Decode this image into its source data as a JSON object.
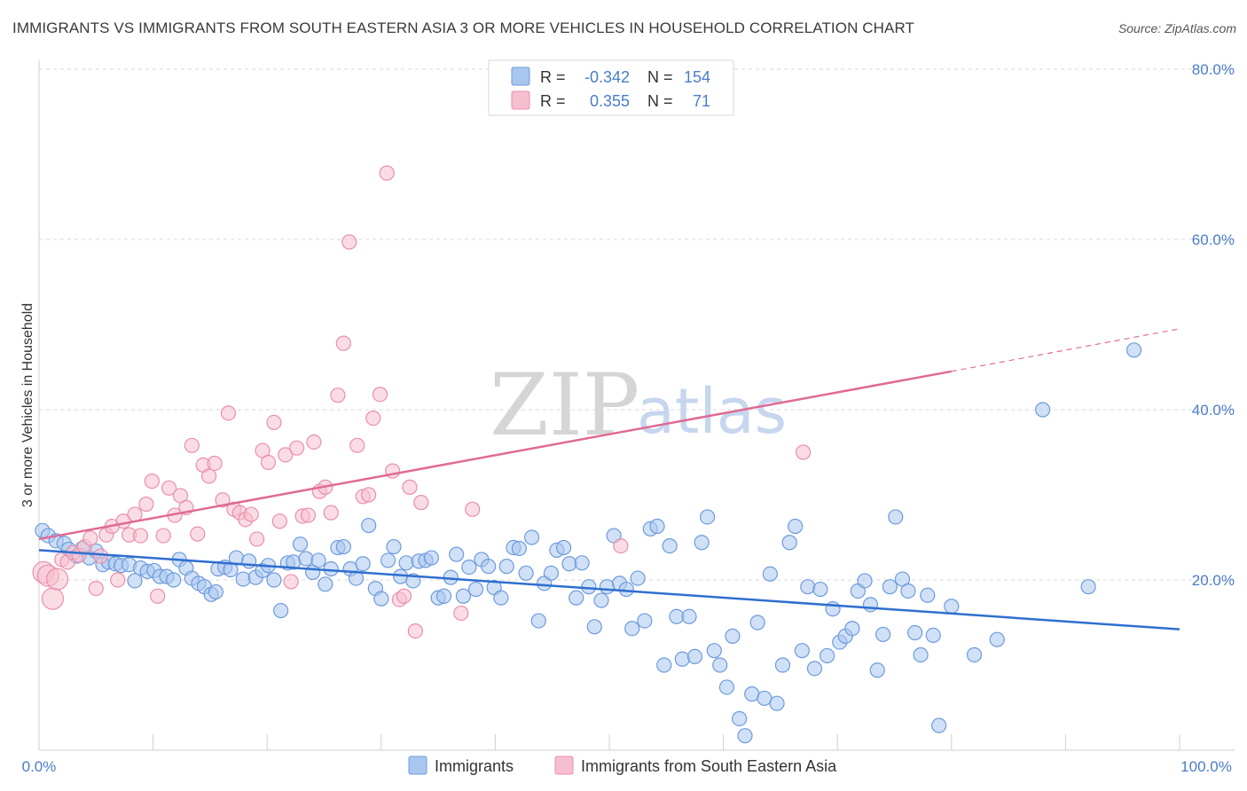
{
  "header": {
    "title": "IMMIGRANTS VS IMMIGRANTS FROM SOUTH EASTERN ASIA 3 OR MORE VEHICLES IN HOUSEHOLD CORRELATION CHART",
    "source": "Source: ZipAtlas.com"
  },
  "watermark": {
    "zip": "ZIP",
    "atlas": "atlas"
  },
  "colors": {
    "blue_fill": "#a9c6ef",
    "blue_stroke": "#6d9bdc",
    "blue_line": "#2e6fcf",
    "pink_fill": "#f6bfd0",
    "pink_stroke": "#e98fab",
    "pink_line": "#e06a94",
    "tick": "#4a7cc9",
    "grid": "#d9d9d9"
  },
  "legend": {
    "rows": [
      {
        "r_label": "R =",
        "r_value": "-0.342",
        "n_label": "N =",
        "n_value": "154"
      },
      {
        "r_label": "R =",
        "r_value": "0.355",
        "n_label": "N =",
        "n_value": "71"
      }
    ]
  },
  "chart_data": {
    "type": "scatter",
    "title": "IMMIGRANTS VS IMMIGRANTS FROM SOUTH EASTERN ASIA 3 OR MORE VEHICLES IN HOUSEHOLD CORRELATION CHART",
    "xlabel": "",
    "ylabel": "3 or more Vehicles in Household",
    "xlim": [
      0,
      100
    ],
    "ylim": [
      0,
      80
    ],
    "x_tick_labels": [
      "0.0%",
      "100.0%"
    ],
    "y_tick_labels": [
      "20.0%",
      "40.0%",
      "60.0%",
      "80.0%"
    ],
    "y_ticks": [
      20,
      40,
      60,
      80
    ],
    "grid": true,
    "legend_position": "top-center",
    "series": [
      {
        "name": "Immigrants",
        "color": "#6d9bdc",
        "r": -0.342,
        "n": 154,
        "trend": {
          "x": [
            0,
            100
          ],
          "y": [
            23.5,
            14.2
          ]
        },
        "points": [
          [
            0.3,
            25.8
          ],
          [
            0.8,
            25.2
          ],
          [
            1.5,
            24.6
          ],
          [
            2.2,
            24.3
          ],
          [
            2.6,
            23.6
          ],
          [
            3.3,
            22.8
          ],
          [
            3.8,
            23.7
          ],
          [
            4.4,
            22.6
          ],
          [
            5.0,
            23.4
          ],
          [
            5.6,
            21.8
          ],
          [
            6.1,
            22.1
          ],
          [
            6.7,
            21.9
          ],
          [
            7.2,
            21.7
          ],
          [
            7.9,
            21.8
          ],
          [
            8.4,
            19.9
          ],
          [
            8.9,
            21.4
          ],
          [
            9.5,
            21.0
          ],
          [
            10.1,
            21.1
          ],
          [
            10.6,
            20.4
          ],
          [
            11.2,
            20.4
          ],
          [
            11.8,
            20.0
          ],
          [
            12.3,
            22.4
          ],
          [
            12.9,
            21.4
          ],
          [
            13.4,
            20.2
          ],
          [
            14.0,
            19.6
          ],
          [
            14.5,
            19.2
          ],
          [
            15.1,
            18.3
          ],
          [
            15.7,
            21.3
          ],
          [
            16.3,
            21.5
          ],
          [
            16.8,
            21.2
          ],
          [
            17.3,
            22.6
          ],
          [
            17.9,
            20.1
          ],
          [
            18.4,
            22.2
          ],
          [
            19.0,
            20.3
          ],
          [
            19.6,
            21.1
          ],
          [
            20.1,
            21.7
          ],
          [
            20.6,
            20.0
          ],
          [
            21.2,
            16.4
          ],
          [
            21.8,
            22.0
          ],
          [
            22.3,
            22.1
          ],
          [
            22.9,
            24.2
          ],
          [
            23.4,
            22.5
          ],
          [
            24.0,
            20.9
          ],
          [
            24.5,
            22.3
          ],
          [
            25.1,
            19.5
          ],
          [
            25.6,
            21.3
          ],
          [
            26.2,
            23.8
          ],
          [
            26.7,
            23.9
          ],
          [
            27.3,
            21.3
          ],
          [
            27.8,
            20.2
          ],
          [
            28.4,
            21.9
          ],
          [
            28.9,
            26.4
          ],
          [
            29.5,
            19.0
          ],
          [
            30.0,
            17.8
          ],
          [
            30.6,
            22.3
          ],
          [
            31.1,
            23.9
          ],
          [
            31.7,
            20.4
          ],
          [
            32.2,
            22.0
          ],
          [
            32.8,
            19.9
          ],
          [
            33.3,
            22.2
          ],
          [
            33.9,
            22.3
          ],
          [
            34.4,
            22.6
          ],
          [
            35.0,
            17.9
          ],
          [
            35.5,
            18.1
          ],
          [
            36.1,
            20.3
          ],
          [
            36.6,
            23.0
          ],
          [
            37.2,
            18.1
          ],
          [
            37.7,
            21.5
          ],
          [
            38.3,
            18.9
          ],
          [
            38.8,
            22.4
          ],
          [
            39.4,
            21.6
          ],
          [
            39.9,
            19.1
          ],
          [
            40.5,
            17.9
          ],
          [
            41.0,
            21.6
          ],
          [
            41.6,
            23.8
          ],
          [
            42.1,
            23.7
          ],
          [
            42.7,
            20.8
          ],
          [
            43.2,
            25.0
          ],
          [
            43.8,
            15.2
          ],
          [
            44.3,
            19.6
          ],
          [
            44.9,
            20.8
          ],
          [
            45.4,
            23.5
          ],
          [
            46.0,
            23.8
          ],
          [
            46.5,
            21.9
          ],
          [
            47.1,
            17.9
          ],
          [
            47.6,
            22.0
          ],
          [
            48.2,
            19.2
          ],
          [
            48.7,
            14.5
          ],
          [
            49.3,
            17.6
          ],
          [
            49.8,
            19.2
          ],
          [
            50.4,
            25.2
          ],
          [
            50.9,
            19.6
          ],
          [
            51.5,
            18.9
          ],
          [
            52.0,
            14.3
          ],
          [
            52.5,
            20.2
          ],
          [
            53.1,
            15.2
          ],
          [
            53.6,
            26.0
          ],
          [
            54.2,
            26.3
          ],
          [
            54.8,
            10.0
          ],
          [
            55.3,
            24.0
          ],
          [
            55.9,
            15.7
          ],
          [
            56.4,
            10.7
          ],
          [
            57.0,
            15.7
          ],
          [
            57.5,
            11.0
          ],
          [
            58.1,
            24.4
          ],
          [
            58.6,
            27.4
          ],
          [
            59.2,
            11.7
          ],
          [
            59.7,
            10.0
          ],
          [
            60.3,
            7.4
          ],
          [
            60.8,
            13.4
          ],
          [
            61.4,
            3.7
          ],
          [
            61.9,
            1.7
          ],
          [
            62.5,
            6.6
          ],
          [
            63.0,
            15.0
          ],
          [
            63.6,
            6.1
          ],
          [
            64.1,
            20.7
          ],
          [
            64.7,
            5.5
          ],
          [
            65.2,
            10.0
          ],
          [
            65.8,
            24.4
          ],
          [
            66.3,
            26.3
          ],
          [
            66.9,
            11.7
          ],
          [
            67.4,
            19.2
          ],
          [
            68.0,
            9.6
          ],
          [
            68.5,
            18.9
          ],
          [
            69.1,
            11.1
          ],
          [
            69.6,
            16.6
          ],
          [
            70.2,
            12.7
          ],
          [
            70.7,
            13.4
          ],
          [
            71.3,
            14.3
          ],
          [
            71.8,
            18.7
          ],
          [
            72.4,
            19.9
          ],
          [
            72.9,
            17.1
          ],
          [
            73.5,
            9.4
          ],
          [
            74.0,
            13.6
          ],
          [
            74.6,
            19.2
          ],
          [
            75.1,
            27.4
          ],
          [
            75.7,
            20.1
          ],
          [
            76.2,
            18.7
          ],
          [
            76.8,
            13.8
          ],
          [
            77.3,
            11.2
          ],
          [
            77.9,
            18.2
          ],
          [
            78.4,
            13.5
          ],
          [
            78.9,
            2.9
          ],
          [
            80.0,
            16.9
          ],
          [
            82.0,
            11.2
          ],
          [
            84.0,
            13.0
          ],
          [
            88.0,
            40.0
          ],
          [
            92.0,
            19.2
          ],
          [
            96.0,
            47.0
          ],
          [
            15.5,
            18.6
          ]
        ]
      },
      {
        "name": "Immigrants from South Eastern Asia",
        "color": "#e98fab",
        "r": 0.355,
        "n": 71,
        "trend": {
          "x": [
            0,
            80
          ],
          "y": [
            24.8,
            44.5
          ]
        },
        "trend_dashed": {
          "x": [
            80,
            100
          ],
          "y": [
            44.5,
            49.5
          ]
        },
        "points": [
          [
            0.4,
            20.9
          ],
          [
            0.8,
            20.5
          ],
          [
            1.2,
            17.8
          ],
          [
            1.6,
            20.1
          ],
          [
            2.0,
            22.4
          ],
          [
            2.5,
            22.1
          ],
          [
            3.0,
            23.2
          ],
          [
            3.5,
            22.9
          ],
          [
            4.0,
            23.9
          ],
          [
            4.5,
            24.9
          ],
          [
            5.0,
            19.0
          ],
          [
            5.4,
            22.8
          ],
          [
            5.9,
            25.3
          ],
          [
            6.4,
            26.3
          ],
          [
            6.9,
            20.0
          ],
          [
            7.4,
            26.9
          ],
          [
            7.9,
            25.3
          ],
          [
            8.4,
            27.7
          ],
          [
            8.9,
            25.2
          ],
          [
            9.4,
            28.9
          ],
          [
            9.9,
            31.6
          ],
          [
            10.4,
            18.1
          ],
          [
            10.9,
            25.2
          ],
          [
            11.4,
            30.8
          ],
          [
            11.9,
            27.6
          ],
          [
            12.4,
            29.9
          ],
          [
            12.9,
            28.5
          ],
          [
            13.4,
            35.8
          ],
          [
            13.9,
            25.4
          ],
          [
            14.4,
            33.5
          ],
          [
            14.9,
            32.2
          ],
          [
            15.4,
            33.7
          ],
          [
            16.1,
            29.4
          ],
          [
            16.6,
            39.6
          ],
          [
            17.1,
            28.3
          ],
          [
            17.6,
            27.9
          ],
          [
            18.1,
            27.1
          ],
          [
            18.6,
            27.7
          ],
          [
            19.1,
            24.8
          ],
          [
            19.6,
            35.2
          ],
          [
            20.1,
            33.8
          ],
          [
            20.6,
            38.5
          ],
          [
            21.1,
            26.9
          ],
          [
            21.6,
            34.7
          ],
          [
            22.1,
            19.8
          ],
          [
            22.6,
            35.5
          ],
          [
            23.1,
            27.5
          ],
          [
            23.6,
            27.6
          ],
          [
            24.1,
            36.2
          ],
          [
            24.6,
            30.4
          ],
          [
            25.1,
            30.9
          ],
          [
            25.6,
            27.9
          ],
          [
            26.2,
            41.7
          ],
          [
            26.7,
            47.8
          ],
          [
            27.2,
            59.7
          ],
          [
            27.9,
            35.8
          ],
          [
            28.4,
            29.8
          ],
          [
            28.9,
            30.0
          ],
          [
            29.3,
            39.0
          ],
          [
            29.9,
            41.8
          ],
          [
            30.5,
            67.8
          ],
          [
            31.0,
            32.8
          ],
          [
            31.6,
            17.7
          ],
          [
            32.0,
            18.1
          ],
          [
            32.5,
            30.9
          ],
          [
            33.0,
            14.0
          ],
          [
            33.5,
            29.1
          ],
          [
            37.0,
            16.1
          ],
          [
            38.0,
            28.3
          ],
          [
            51.0,
            24.0
          ],
          [
            67.0,
            35.0
          ]
        ]
      }
    ]
  },
  "bottom_legend": {
    "items": [
      {
        "label": "Immigrants"
      },
      {
        "label": "Immigrants from South Eastern Asia"
      }
    ]
  }
}
